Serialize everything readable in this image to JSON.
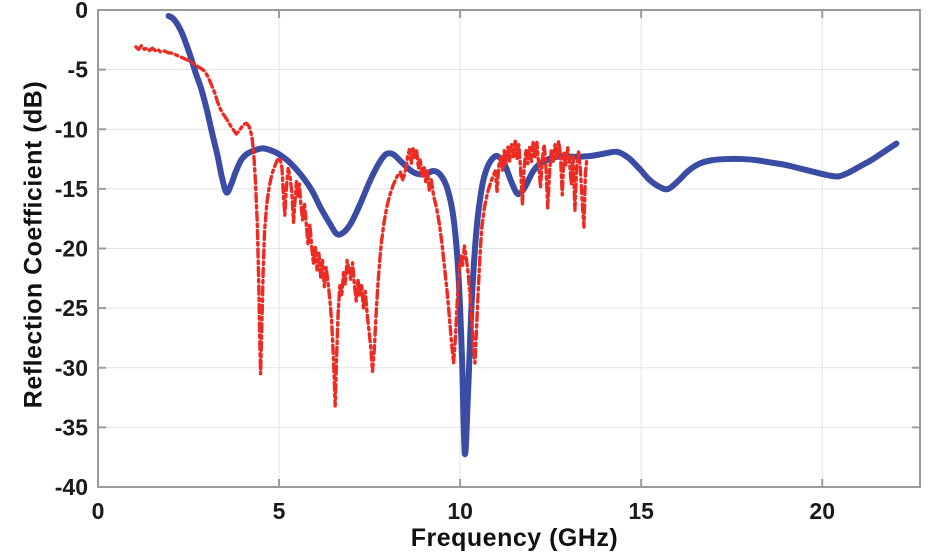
{
  "figure": {
    "background": "#ffffff",
    "plot_box_color": "#9b9b9b",
    "grid_color": "#e3e3e3",
    "tick_label_color": "#1a1a1a"
  },
  "chart_data": {
    "type": "line",
    "title": "",
    "xlabel": "Frequency (GHz)",
    "ylabel": "Reflection Coefficient (dB)",
    "xlim": [
      0,
      22.7
    ],
    "ylim": [
      -40,
      0
    ],
    "xticks": [
      0,
      5,
      10,
      15,
      20
    ],
    "yticks": [
      0,
      -5,
      -10,
      -15,
      -20,
      -25,
      -30,
      -35,
      -40
    ],
    "grid": true,
    "legend": "none",
    "series": [
      {
        "name": "blue-solid-curve",
        "color": "#3a4ca3",
        "style": "solid",
        "width": 6,
        "points": [
          [
            1.95,
            -0.5
          ],
          [
            2.1,
            -0.8
          ],
          [
            2.3,
            -1.8
          ],
          [
            2.5,
            -3.4
          ],
          [
            2.7,
            -5.3
          ],
          [
            2.85,
            -6.6
          ],
          [
            3.0,
            -8.3
          ],
          [
            3.15,
            -10.3
          ],
          [
            3.3,
            -12.2
          ],
          [
            3.42,
            -14.0
          ],
          [
            3.55,
            -15.3
          ],
          [
            3.68,
            -14.6
          ],
          [
            3.8,
            -13.6
          ],
          [
            3.95,
            -12.6
          ],
          [
            4.1,
            -12.1
          ],
          [
            4.3,
            -11.8
          ],
          [
            4.55,
            -11.6
          ],
          [
            4.8,
            -11.8
          ],
          [
            5.0,
            -12.1
          ],
          [
            5.3,
            -12.8
          ],
          [
            5.6,
            -13.8
          ],
          [
            5.9,
            -15.1
          ],
          [
            6.15,
            -16.6
          ],
          [
            6.4,
            -17.9
          ],
          [
            6.6,
            -18.8
          ],
          [
            6.8,
            -18.6
          ],
          [
            7.0,
            -17.8
          ],
          [
            7.25,
            -16.2
          ],
          [
            7.5,
            -14.4
          ],
          [
            7.75,
            -12.9
          ],
          [
            7.95,
            -12.1
          ],
          [
            8.15,
            -12.1
          ],
          [
            8.4,
            -12.8
          ],
          [
            8.7,
            -13.6
          ],
          [
            9.0,
            -13.8
          ],
          [
            9.25,
            -13.5
          ],
          [
            9.45,
            -13.8
          ],
          [
            9.65,
            -15.0
          ],
          [
            9.82,
            -17.5
          ],
          [
            9.95,
            -22.0
          ],
          [
            10.05,
            -29.0
          ],
          [
            10.13,
            -37.2
          ],
          [
            10.22,
            -32.0
          ],
          [
            10.32,
            -24.5
          ],
          [
            10.45,
            -18.5
          ],
          [
            10.6,
            -14.9
          ],
          [
            10.75,
            -13.2
          ],
          [
            10.95,
            -12.3
          ],
          [
            11.1,
            -12.4
          ],
          [
            11.25,
            -13.1
          ],
          [
            11.4,
            -14.3
          ],
          [
            11.55,
            -15.3
          ],
          [
            11.65,
            -15.4
          ],
          [
            11.8,
            -14.8
          ],
          [
            12.0,
            -13.6
          ],
          [
            12.2,
            -12.9
          ],
          [
            12.45,
            -12.5
          ],
          [
            12.7,
            -12.3
          ],
          [
            13.0,
            -12.3
          ],
          [
            13.35,
            -12.3
          ],
          [
            13.7,
            -12.2
          ],
          [
            14.05,
            -12.0
          ],
          [
            14.35,
            -11.9
          ],
          [
            14.65,
            -12.4
          ],
          [
            14.95,
            -13.3
          ],
          [
            15.25,
            -14.3
          ],
          [
            15.55,
            -14.9
          ],
          [
            15.75,
            -15.0
          ],
          [
            16.0,
            -14.4
          ],
          [
            16.3,
            -13.5
          ],
          [
            16.6,
            -12.9
          ],
          [
            16.95,
            -12.6
          ],
          [
            17.35,
            -12.5
          ],
          [
            17.8,
            -12.5
          ],
          [
            18.2,
            -12.6
          ],
          [
            18.6,
            -12.8
          ],
          [
            19.0,
            -13.0
          ],
          [
            19.4,
            -13.3
          ],
          [
            19.8,
            -13.6
          ],
          [
            20.15,
            -13.85
          ],
          [
            20.45,
            -13.95
          ],
          [
            20.75,
            -13.6
          ],
          [
            21.05,
            -13.1
          ],
          [
            21.35,
            -12.6
          ],
          [
            21.65,
            -12.0
          ],
          [
            21.9,
            -11.5
          ],
          [
            22.05,
            -11.2
          ]
        ]
      },
      {
        "name": "red-dash-dot-curve",
        "color": "#ec2b23",
        "style": "dash-dot",
        "width": 3.4,
        "points": [
          [
            1.05,
            -3.1
          ],
          [
            1.12,
            -3.3
          ],
          [
            1.2,
            -3.0
          ],
          [
            1.28,
            -3.3
          ],
          [
            1.35,
            -3.2
          ],
          [
            1.42,
            -3.4
          ],
          [
            1.5,
            -3.2
          ],
          [
            1.58,
            -3.4
          ],
          [
            1.65,
            -3.3
          ],
          [
            1.72,
            -3.5
          ],
          [
            1.8,
            -3.4
          ],
          [
            1.88,
            -3.5
          ],
          [
            1.95,
            -3.6
          ],
          [
            2.02,
            -3.6
          ],
          [
            2.1,
            -3.7
          ],
          [
            2.18,
            -3.8
          ],
          [
            2.25,
            -3.9
          ],
          [
            2.33,
            -4.0
          ],
          [
            2.4,
            -4.1
          ],
          [
            2.48,
            -4.2
          ],
          [
            2.55,
            -4.3
          ],
          [
            2.63,
            -4.5
          ],
          [
            2.7,
            -4.6
          ],
          [
            2.78,
            -4.8
          ],
          [
            2.85,
            -4.9
          ],
          [
            2.93,
            -5.1
          ],
          [
            3.0,
            -5.4
          ],
          [
            3.08,
            -5.9
          ],
          [
            3.15,
            -6.4
          ],
          [
            3.23,
            -7.0
          ],
          [
            3.3,
            -7.7
          ],
          [
            3.38,
            -8.3
          ],
          [
            3.45,
            -8.7
          ],
          [
            3.52,
            -9.0
          ],
          [
            3.6,
            -9.4
          ],
          [
            3.68,
            -9.8
          ],
          [
            3.75,
            -10.1
          ],
          [
            3.82,
            -10.4
          ],
          [
            3.88,
            -10.2
          ],
          [
            3.95,
            -9.9
          ],
          [
            4.02,
            -9.6
          ],
          [
            4.1,
            -9.5
          ],
          [
            4.18,
            -9.8
          ],
          [
            4.25,
            -10.6
          ],
          [
            4.3,
            -12.0
          ],
          [
            4.35,
            -14.5
          ],
          [
            4.4,
            -18.0
          ],
          [
            4.44,
            -23.0
          ],
          [
            4.47,
            -28.0
          ],
          [
            4.49,
            -30.5
          ],
          [
            4.52,
            -27.0
          ],
          [
            4.56,
            -22.0
          ],
          [
            4.6,
            -18.5
          ],
          [
            4.66,
            -16.3
          ],
          [
            4.73,
            -14.8
          ],
          [
            4.8,
            -13.8
          ],
          [
            4.88,
            -13.1
          ],
          [
            4.95,
            -12.6
          ],
          [
            5.02,
            -12.4
          ],
          [
            5.08,
            -13.2
          ],
          [
            5.12,
            -15.5
          ],
          [
            5.16,
            -17.2
          ],
          [
            5.2,
            -15.0
          ],
          [
            5.25,
            -13.3
          ],
          [
            5.3,
            -13.9
          ],
          [
            5.35,
            -15.2
          ],
          [
            5.4,
            -17.8
          ],
          [
            5.44,
            -16.0
          ],
          [
            5.48,
            -14.4
          ],
          [
            5.52,
            -15.6
          ],
          [
            5.56,
            -14.6
          ],
          [
            5.6,
            -16.2
          ],
          [
            5.65,
            -17.6
          ],
          [
            5.7,
            -16.2
          ],
          [
            5.75,
            -17.9
          ],
          [
            5.8,
            -19.6
          ],
          [
            5.85,
            -18.0
          ],
          [
            5.9,
            -19.8
          ],
          [
            5.95,
            -21.3
          ],
          [
            6.0,
            -19.8
          ],
          [
            6.05,
            -21.8
          ],
          [
            6.1,
            -20.4
          ],
          [
            6.15,
            -22.4
          ],
          [
            6.2,
            -21.0
          ],
          [
            6.25,
            -23.2
          ],
          [
            6.3,
            -21.6
          ],
          [
            6.35,
            -22.8
          ],
          [
            6.4,
            -24.2
          ],
          [
            6.45,
            -26.0
          ],
          [
            6.5,
            -29.0
          ],
          [
            6.55,
            -33.2
          ],
          [
            6.59,
            -29.0
          ],
          [
            6.63,
            -25.5
          ],
          [
            6.68,
            -23.0
          ],
          [
            6.73,
            -24.0
          ],
          [
            6.78,
            -22.0
          ],
          [
            6.83,
            -23.0
          ],
          [
            6.88,
            -21.0
          ],
          [
            6.93,
            -21.8
          ],
          [
            6.98,
            -22.6
          ],
          [
            7.03,
            -21.2
          ],
          [
            7.08,
            -23.0
          ],
          [
            7.13,
            -24.4
          ],
          [
            7.18,
            -22.6
          ],
          [
            7.23,
            -24.0
          ],
          [
            7.28,
            -23.0
          ],
          [
            7.33,
            -25.0
          ],
          [
            7.38,
            -23.6
          ],
          [
            7.43,
            -25.4
          ],
          [
            7.48,
            -26.8
          ],
          [
            7.53,
            -28.2
          ],
          [
            7.58,
            -30.3
          ],
          [
            7.63,
            -28.5
          ],
          [
            7.68,
            -25.5
          ],
          [
            7.73,
            -23.0
          ],
          [
            7.78,
            -21.0
          ],
          [
            7.83,
            -19.4
          ],
          [
            7.9,
            -17.8
          ],
          [
            7.97,
            -16.6
          ],
          [
            8.05,
            -15.6
          ],
          [
            8.15,
            -14.7
          ],
          [
            8.25,
            -14.0
          ],
          [
            8.35,
            -13.6
          ],
          [
            8.42,
            -14.3
          ],
          [
            8.5,
            -13.3
          ],
          [
            8.55,
            -12.3
          ],
          [
            8.6,
            -11.7
          ],
          [
            8.65,
            -12.9
          ],
          [
            8.7,
            -11.5
          ],
          [
            8.75,
            -12.5
          ],
          [
            8.8,
            -11.8
          ],
          [
            8.85,
            -13.3
          ],
          [
            8.9,
            -12.5
          ],
          [
            8.95,
            -13.9
          ],
          [
            9.0,
            -13.1
          ],
          [
            9.05,
            -14.4
          ],
          [
            9.1,
            -13.5
          ],
          [
            9.15,
            -15.1
          ],
          [
            9.2,
            -14.2
          ],
          [
            9.27,
            -15.6
          ],
          [
            9.35,
            -16.6
          ],
          [
            9.43,
            -18.0
          ],
          [
            9.5,
            -19.6
          ],
          [
            9.57,
            -21.6
          ],
          [
            9.64,
            -23.6
          ],
          [
            9.7,
            -25.6
          ],
          [
            9.76,
            -27.8
          ],
          [
            9.82,
            -29.6
          ],
          [
            9.87,
            -27.5
          ],
          [
            9.92,
            -24.5
          ],
          [
            9.97,
            -22.0
          ],
          [
            10.02,
            -20.6
          ],
          [
            10.07,
            -21.4
          ],
          [
            10.12,
            -19.8
          ],
          [
            10.17,
            -20.8
          ],
          [
            10.22,
            -22.0
          ],
          [
            10.27,
            -23.8
          ],
          [
            10.32,
            -26.0
          ],
          [
            10.37,
            -28.4
          ],
          [
            10.41,
            -29.6
          ],
          [
            10.45,
            -27.0
          ],
          [
            10.5,
            -23.5
          ],
          [
            10.55,
            -20.5
          ],
          [
            10.6,
            -18.2
          ],
          [
            10.67,
            -16.6
          ],
          [
            10.75,
            -15.4
          ],
          [
            10.83,
            -14.6
          ],
          [
            10.9,
            -14.0
          ],
          [
            10.97,
            -13.5
          ],
          [
            11.02,
            -15.2
          ],
          [
            11.07,
            -13.0
          ],
          [
            11.12,
            -12.3
          ],
          [
            11.17,
            -13.5
          ],
          [
            11.22,
            -11.8
          ],
          [
            11.27,
            -12.9
          ],
          [
            11.32,
            -11.5
          ],
          [
            11.37,
            -12.7
          ],
          [
            11.42,
            -11.3
          ],
          [
            11.47,
            -12.3
          ],
          [
            11.52,
            -10.9
          ],
          [
            11.57,
            -12.5
          ],
          [
            11.62,
            -11.3
          ],
          [
            11.67,
            -13.3
          ],
          [
            11.72,
            -16.3
          ],
          [
            11.77,
            -13.2
          ],
          [
            11.82,
            -11.7
          ],
          [
            11.87,
            -12.9
          ],
          [
            11.92,
            -11.5
          ],
          [
            11.97,
            -12.7
          ],
          [
            12.02,
            -11.0
          ],
          [
            12.07,
            -12.3
          ],
          [
            12.12,
            -11.1
          ],
          [
            12.17,
            -12.9
          ],
          [
            12.22,
            -14.9
          ],
          [
            12.27,
            -12.5
          ],
          [
            12.32,
            -11.3
          ],
          [
            12.37,
            -13.1
          ],
          [
            12.42,
            -16.6
          ],
          [
            12.47,
            -13.6
          ],
          [
            12.52,
            -11.7
          ],
          [
            12.57,
            -12.7
          ],
          [
            12.62,
            -11.3
          ],
          [
            12.67,
            -12.5
          ],
          [
            12.72,
            -11.0
          ],
          [
            12.77,
            -12.1
          ],
          [
            12.82,
            -15.5
          ],
          [
            12.87,
            -12.0
          ],
          [
            12.92,
            -13.0
          ],
          [
            12.97,
            -11.5
          ],
          [
            13.02,
            -12.7
          ],
          [
            13.07,
            -14.6
          ],
          [
            13.12,
            -12.3
          ],
          [
            13.17,
            -16.8
          ],
          [
            13.22,
            -13.1
          ],
          [
            13.27,
            -11.9
          ],
          [
            13.32,
            -13.3
          ],
          [
            13.37,
            -16.0
          ],
          [
            13.42,
            -18.2
          ],
          [
            13.46,
            -13.7
          ],
          [
            13.5,
            -12.5
          ]
        ]
      }
    ]
  }
}
